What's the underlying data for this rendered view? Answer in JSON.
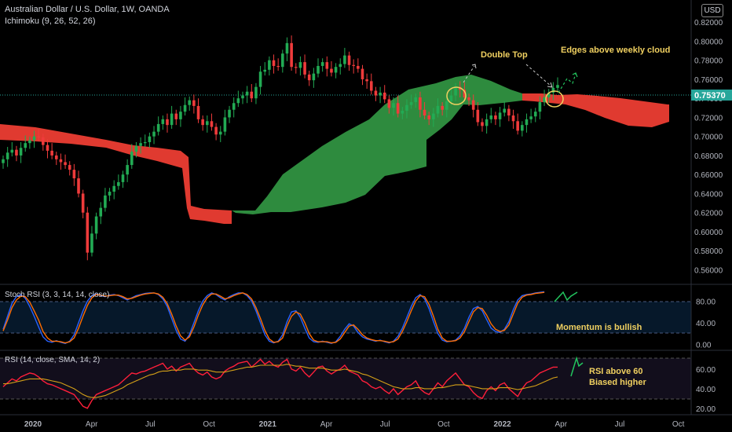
{
  "header": {
    "symbol_title": "Australian Dollar / U.S. Dollar, 1W, OANDA",
    "indicator": "Ichimoku (9, 26, 52, 26)",
    "currency": "USD"
  },
  "colors": {
    "background": "#000000",
    "bull": "#26a69a",
    "bull_candle": "#22ab54",
    "bear": "#ef3b3b",
    "cloud_bull": "#2e8b3e",
    "cloud_bear": "#e03a30",
    "annotation": "#f0d060",
    "stoch_k": "#2962ff",
    "stoch_d": "#ff6d00",
    "rsi": "#ff1f3a",
    "rsi_ma": "#d4a017",
    "price_tag": "#26a69a"
  },
  "chart_data": [
    {
      "type": "candlestick",
      "name": "price",
      "ylim": [
        0.548,
        0.835
      ],
      "yticks": [
        "0.56000",
        "0.58000",
        "0.60000",
        "0.62000",
        "0.64000",
        "0.66000",
        "0.68000",
        "0.70000",
        "0.72000",
        "0.74000",
        "0.76000",
        "0.78000",
        "0.80000",
        "0.82000"
      ],
      "last_price": "0.75370",
      "close": [
        0.676,
        0.683,
        0.686,
        0.68,
        0.688,
        0.693,
        0.696,
        0.7,
        0.699,
        0.691,
        0.685,
        0.68,
        0.676,
        0.673,
        0.67,
        0.665,
        0.656,
        0.64,
        0.62,
        0.578,
        0.598,
        0.616,
        0.625,
        0.638,
        0.642,
        0.648,
        0.652,
        0.66,
        0.67,
        0.684,
        0.69,
        0.693,
        0.694,
        0.7,
        0.705,
        0.713,
        0.718,
        0.712,
        0.724,
        0.718,
        0.726,
        0.733,
        0.738,
        0.732,
        0.718,
        0.712,
        0.716,
        0.71,
        0.702,
        0.705,
        0.72,
        0.728,
        0.735,
        0.74,
        0.743,
        0.747,
        0.74,
        0.752,
        0.768,
        0.77,
        0.78,
        0.774,
        0.773,
        0.787,
        0.798,
        0.773,
        0.772,
        0.778,
        0.765,
        0.759,
        0.766,
        0.774,
        0.778,
        0.771,
        0.767,
        0.773,
        0.776,
        0.785,
        0.775,
        0.774,
        0.771,
        0.76,
        0.758,
        0.748,
        0.743,
        0.746,
        0.739,
        0.73,
        0.735,
        0.724,
        0.727,
        0.733,
        0.736,
        0.741,
        0.728,
        0.722,
        0.718,
        0.724,
        0.732,
        0.728,
        0.737,
        0.743,
        0.752,
        0.749,
        0.741,
        0.738,
        0.728,
        0.715,
        0.711,
        0.718,
        0.722,
        0.718,
        0.725,
        0.729,
        0.722,
        0.716,
        0.706,
        0.712,
        0.718,
        0.721,
        0.726,
        0.736,
        0.741,
        0.746,
        0.751,
        0.754
      ],
      "annotations": [
        "Double Top",
        "Edges above weekly cloud"
      ],
      "x_ticks": [
        "2020",
        "Apr",
        "Jul",
        "Oct",
        "2021",
        "Apr",
        "Jul",
        "Oct",
        "2022",
        "Apr",
        "Jul",
        "Oct"
      ]
    },
    {
      "type": "line",
      "name": "Stoch RSI (3, 3, 14, 14, close)",
      "ylim": [
        -5,
        105
      ],
      "yticks": [
        "0.00",
        "40.00",
        "80.00"
      ],
      "bands": [
        80,
        20
      ],
      "series": [
        {
          "name": "K",
          "values": [
            28,
            52,
            76,
            88,
            92,
            85,
            70,
            52,
            32,
            14,
            6,
            4,
            7,
            4,
            2,
            6,
            18,
            40,
            62,
            80,
            90,
            93,
            90,
            88,
            91,
            92,
            90,
            86,
            82,
            86,
            90,
            92,
            94,
            95,
            95,
            92,
            84,
            70,
            48,
            26,
            10,
            6,
            18,
            40,
            62,
            80,
            90,
            95,
            92,
            86,
            82,
            88,
            92,
            95,
            95,
            90,
            80,
            62,
            40,
            18,
            6,
            3,
            6,
            18,
            42,
            60,
            62,
            50,
            30,
            12,
            5,
            4,
            6,
            4,
            2,
            5,
            15,
            28,
            38,
            34,
            22,
            14,
            10,
            8,
            6,
            8,
            5,
            3,
            6,
            15,
            30,
            50,
            70,
            86,
            92,
            84,
            66,
            42,
            20,
            8,
            5,
            6,
            8,
            16,
            30,
            50,
            66,
            70,
            62,
            46,
            30,
            24,
            22,
            28,
            42,
            64,
            82,
            90,
            92,
            93,
            95,
            96,
            97
          ]
        },
        {
          "name": "D",
          "values": [
            25,
            45,
            68,
            82,
            89,
            88,
            78,
            62,
            45,
            24,
            12,
            6,
            6,
            5,
            3,
            5,
            12,
            30,
            52,
            72,
            86,
            92,
            91,
            89,
            90,
            91,
            91,
            88,
            84,
            85,
            88,
            91,
            93,
            94,
            95,
            93,
            87,
            75,
            56,
            34,
            16,
            8,
            14,
            32,
            54,
            73,
            86,
            93,
            93,
            89,
            84,
            86,
            90,
            93,
            95,
            92,
            84,
            68,
            48,
            26,
            10,
            4,
            5,
            12,
            34,
            52,
            60,
            56,
            40,
            20,
            8,
            5,
            5,
            5,
            3,
            4,
            10,
            22,
            34,
            36,
            28,
            18,
            12,
            9,
            7,
            7,
            6,
            4,
            5,
            10,
            24,
            42,
            62,
            80,
            90,
            88,
            74,
            52,
            28,
            12,
            6,
            6,
            7,
            12,
            24,
            42,
            60,
            68,
            66,
            54,
            38,
            28,
            24,
            26,
            36,
            56,
            76,
            87,
            91,
            92,
            94,
            95,
            96
          ]
        }
      ],
      "annotation": "Momentum is bullish"
    },
    {
      "type": "line",
      "name": "RSI (14, close, SMA, 14, 2)",
      "ylim": [
        15,
        76
      ],
      "yticks": [
        "20.00",
        "40.00",
        "60.00"
      ],
      "bands": [
        70,
        30
      ],
      "series": [
        {
          "name": "RSI",
          "values": [
            42,
            46,
            50,
            48,
            52,
            54,
            56,
            55,
            52,
            48,
            45,
            44,
            42,
            40,
            38,
            36,
            34,
            28,
            22,
            20,
            28,
            34,
            36,
            38,
            40,
            42,
            44,
            48,
            52,
            56,
            55,
            57,
            58,
            60,
            62,
            64,
            66,
            60,
            63,
            58,
            62,
            64,
            66,
            60,
            56,
            54,
            57,
            52,
            50,
            52,
            58,
            61,
            63,
            66,
            67,
            68,
            62,
            66,
            70,
            65,
            68,
            64,
            62,
            67,
            70,
            60,
            58,
            62,
            56,
            52,
            57,
            62,
            63,
            58,
            55,
            58,
            60,
            64,
            58,
            56,
            54,
            48,
            46,
            42,
            40,
            42,
            38,
            35,
            40,
            34,
            38,
            42,
            44,
            48,
            40,
            36,
            34,
            40,
            46,
            42,
            48,
            52,
            56,
            50,
            44,
            42,
            36,
            32,
            30,
            38,
            42,
            38,
            44,
            46,
            40,
            36,
            32,
            40,
            46,
            48,
            52,
            56,
            58,
            60,
            62,
            62
          ]
        },
        {
          "name": "SMA",
          "values": [
            45,
            45,
            46,
            47,
            48,
            49,
            50,
            50,
            50,
            50,
            49,
            48,
            47,
            46,
            44,
            42,
            40,
            37,
            34,
            32,
            31,
            31,
            32,
            33,
            35,
            37,
            39,
            41,
            44,
            46,
            48,
            50,
            52,
            54,
            55,
            57,
            58,
            58,
            59,
            59,
            59,
            60,
            60,
            60,
            59,
            59,
            59,
            58,
            57,
            57,
            57,
            58,
            59,
            60,
            61,
            62,
            62,
            63,
            64,
            64,
            64,
            64,
            64,
            64,
            65,
            64,
            63,
            63,
            62,
            61,
            61,
            61,
            61,
            60,
            59,
            59,
            59,
            60,
            59,
            58,
            57,
            55,
            54,
            52,
            50,
            48,
            46,
            44,
            42,
            41,
            40,
            40,
            40,
            41,
            41,
            40,
            40,
            40,
            41,
            41,
            42,
            43,
            44,
            44,
            44,
            43,
            42,
            41,
            40,
            40,
            40,
            40,
            41,
            41,
            41,
            40,
            39,
            40,
            41,
            42,
            43,
            45,
            47,
            49,
            51,
            52
          ]
        }
      ],
      "annotation_line1": "RSI above 60",
      "annotation_line2": "Biased higher"
    }
  ]
}
